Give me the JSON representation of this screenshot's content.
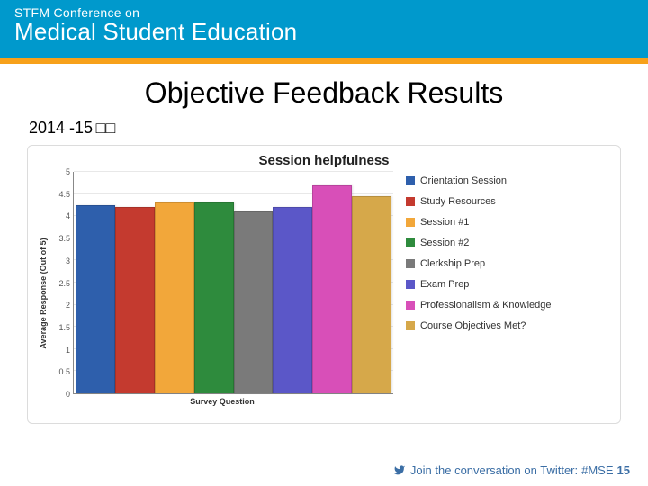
{
  "header": {
    "line1": "STFM Conference on",
    "line2": "Medical Student Education",
    "bg_color": "#0099cc",
    "accent_color": "#f7a11a"
  },
  "page": {
    "title": "Objective Feedback Results",
    "year_label": "2014 -15 □□"
  },
  "chart": {
    "type": "bar",
    "title": "Session helpfulness",
    "title_fontsize": 15,
    "ylabel": "Average Response (Out of 5)",
    "xlabel": "Survey Question",
    "ylim": [
      0,
      5
    ],
    "ytick_step": 0.5,
    "yticks": [
      "0",
      "0.5",
      "1",
      "1.5",
      "2",
      "2.5",
      "3",
      "3.5",
      "4",
      "4.5",
      "5"
    ],
    "grid_color": "#e8e8e8",
    "background_color": "#ffffff",
    "border_color": "#dcdcdc",
    "bar_width": 1.0,
    "label_fontsize": 9,
    "series": [
      {
        "label": "Orientation Session",
        "value": 4.25,
        "color": "#2e5fac"
      },
      {
        "label": "Study Resources",
        "value": 4.2,
        "color": "#c43a2f"
      },
      {
        "label": "Session #1",
        "value": 4.3,
        "color": "#f2a73a"
      },
      {
        "label": "Session #2",
        "value": 4.3,
        "color": "#2e8b3d"
      },
      {
        "label": "Clerkship Prep",
        "value": 4.1,
        "color": "#7a7a7a"
      },
      {
        "label": "Exam Prep",
        "value": 4.2,
        "color": "#5b57c8"
      },
      {
        "label": "Professionalism & Knowledge",
        "value": 4.7,
        "color": "#d84fb8"
      },
      {
        "label": "Course Objectives Met?",
        "value": 4.45,
        "color": "#d6a84a"
      }
    ]
  },
  "footer": {
    "text": "Join the conversation on Twitter:",
    "hashtag": "#MSE",
    "suffix": "15",
    "color": "#3b6ea5"
  }
}
